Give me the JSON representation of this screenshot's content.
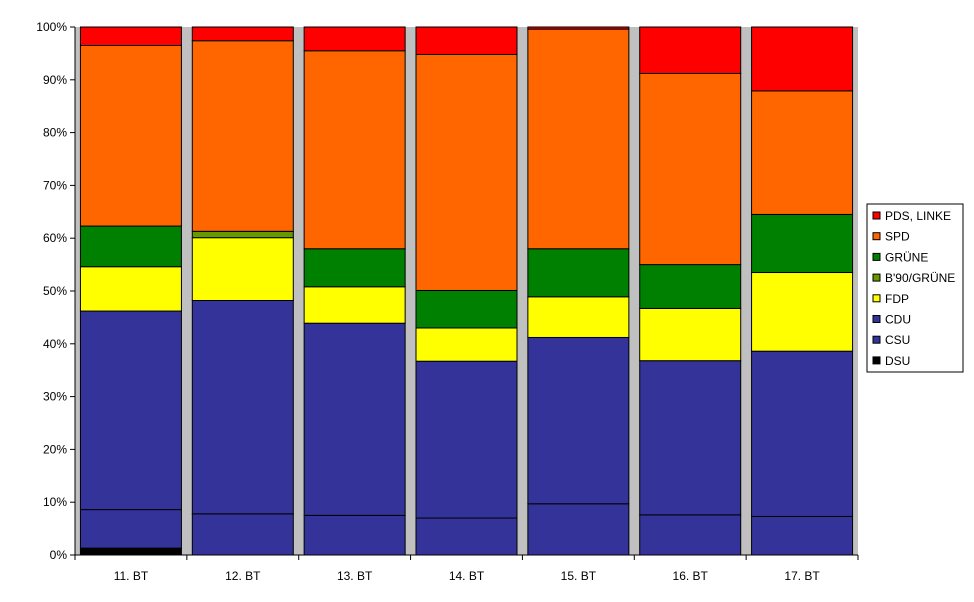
{
  "chart_data": {
    "type": "bar",
    "stacked": true,
    "percent": true,
    "title": "",
    "xlabel": "",
    "ylabel": "",
    "ylim": [
      0,
      100
    ],
    "yticks": [
      "0%",
      "10%",
      "20%",
      "30%",
      "40%",
      "50%",
      "60%",
      "70%",
      "80%",
      "90%",
      "100%"
    ],
    "categories": [
      "11. BT",
      "12. BT",
      "13. BT",
      "14. BT",
      "15. BT",
      "16. BT",
      "17. BT"
    ],
    "series": [
      {
        "name": "DSU",
        "color": "#000000",
        "values": [
          1.3,
          0,
          0,
          0,
          0,
          0,
          0
        ]
      },
      {
        "name": "CSU",
        "color": "#333399",
        "values": [
          7.3,
          7.8,
          7.5,
          7.0,
          9.7,
          7.6,
          7.3
        ]
      },
      {
        "name": "CDU",
        "color": "#333399",
        "values": [
          37.6,
          40.4,
          36.4,
          29.7,
          31.5,
          29.2,
          31.3
        ]
      },
      {
        "name": "FDP",
        "color": "#ffff00",
        "values": [
          8.4,
          11.9,
          6.9,
          6.3,
          7.7,
          9.9,
          14.9
        ]
      },
      {
        "name": "B'90/GRÜNE",
        "color": "#669900",
        "values": [
          0,
          1.2,
          0,
          0,
          0,
          0,
          0
        ]
      },
      {
        "name": "GRÜNE",
        "color": "#008000",
        "values": [
          7.7,
          0,
          7.2,
          7.1,
          9.1,
          8.3,
          11.0
        ]
      },
      {
        "name": "SPD",
        "color": "#ff6600",
        "values": [
          34.2,
          36.1,
          37.5,
          44.7,
          41.6,
          36.2,
          23.4
        ]
      },
      {
        "name": "PDS, LINKE",
        "color": "#ff0000",
        "values": [
          3.5,
          2.6,
          4.5,
          5.2,
          0.4,
          8.8,
          12.1
        ]
      }
    ],
    "legend_order": [
      "PDS, LINKE",
      "SPD",
      "GRÜNE",
      "B'90/GRÜNE",
      "FDP",
      "CDU",
      "CSU",
      "DSU"
    ],
    "legend_position": "right",
    "plot_background": "#c0c0c0",
    "grid": false
  }
}
